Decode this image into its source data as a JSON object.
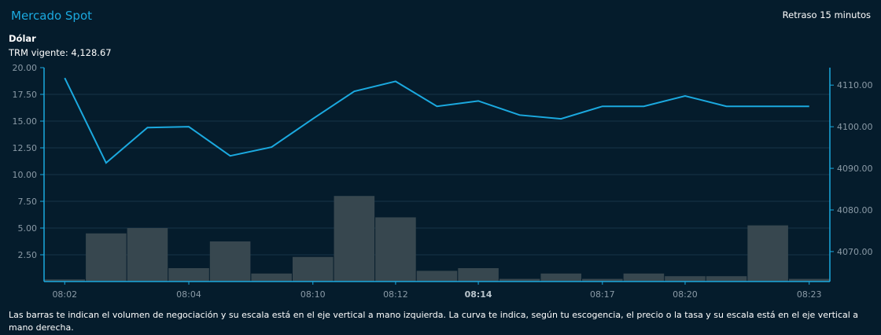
{
  "header": {
    "title": "Mercado Spot",
    "delay": "Retraso 15 minutos"
  },
  "asset": {
    "name": "Dólar",
    "trm": "TRM vigente: 4,128.67"
  },
  "colors": {
    "line": "#1ba9df",
    "bar": "#37474f",
    "axis": "#1ba9df",
    "grid": "#163447",
    "tick_text": "#8a9aa6"
  },
  "chart_data": {
    "type": "bar+line",
    "categories": [
      "08:02",
      "",
      "",
      "08:04",
      "",
      "",
      "08:10",
      "",
      "08:12",
      "",
      "08:14",
      "",
      "",
      "08:17",
      "",
      "08:20",
      "",
      "",
      "08:23"
    ],
    "bold_category": "08:14",
    "series": [
      {
        "kind": "bar",
        "axis": "left",
        "values": [
          0.2,
          4.5,
          5.0,
          1.25,
          3.75,
          0.75,
          2.3,
          8.0,
          6.0,
          1.0,
          1.25,
          0.25,
          0.75,
          0.25,
          0.75,
          0.5,
          0.5,
          5.25,
          0.25
        ]
      },
      {
        "kind": "line",
        "axis": "right",
        "values": [
          4111.7,
          4091.3,
          4099.8,
          4100.0,
          4093.0,
          4095.1,
          4101.9,
          4108.5,
          4110.9,
          4104.9,
          4106.2,
          4102.8,
          4101.9,
          4104.9,
          4104.9,
          4107.4,
          4104.9,
          4104.9,
          4104.9
        ]
      }
    ],
    "left_axis": {
      "ylim": [
        0,
        20
      ],
      "ticks": [
        "2.50",
        "5.00",
        "7.50",
        "10.00",
        "12.50",
        "15.00",
        "17.50",
        "20.00"
      ]
    },
    "right_axis": {
      "ylim": [
        4062.8,
        4114.2
      ],
      "ticks": [
        "4070.00",
        "4080.00",
        "4090.00",
        "4100.00",
        "4110.00"
      ]
    },
    "grid": true
  },
  "footer": {
    "note": "Las barras te indican el volumen de negociación y su escala está en el eje vertical a mano izquierda. La curva te indica, según tu escogencia, el precio o la tasa y su escala está en el eje vertical a mano derecha."
  }
}
